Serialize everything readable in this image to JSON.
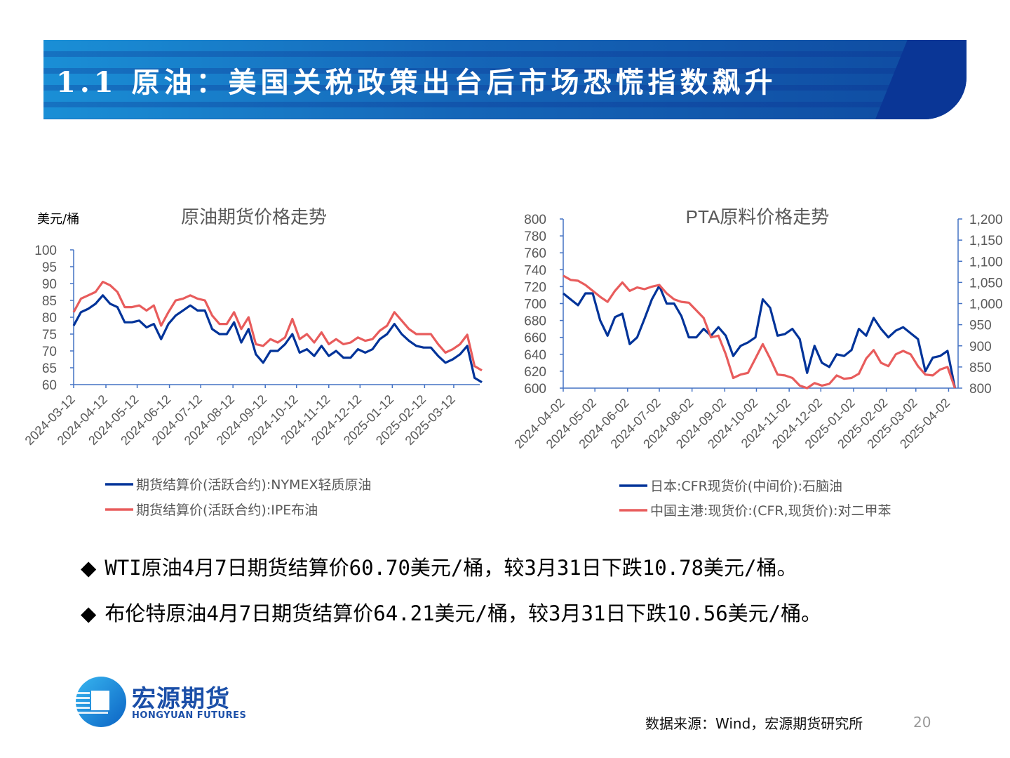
{
  "header": {
    "title": "1.1 原油：美国关税政策出台后市场恐慌指数飙升"
  },
  "colors": {
    "blue": "#003399",
    "red": "#e85c5c",
    "axis": "#4472c4",
    "text": "#595959"
  },
  "chart_data": [
    {
      "type": "line",
      "title": "原油期货价格走势",
      "ylabel": "美元/桶",
      "ylim": [
        60,
        100
      ],
      "yticks": [
        "60",
        "65",
        "70",
        "75",
        "80",
        "85",
        "90",
        "95",
        "100"
      ],
      "xticks": [
        "2024-03-12",
        "2024-04-12",
        "2024-05-12",
        "2024-06-12",
        "2024-07-12",
        "2024-08-12",
        "2024-09-12",
        "2024-10-12",
        "2024-11-12",
        "2024-12-12",
        "2025-01-12",
        "2025-02-12",
        "2025-03-12"
      ],
      "start": "2024-03-12",
      "step_days": 7,
      "legend_position": "bottom",
      "series": [
        {
          "name": "期货结算价(活跃合约):NYMEX轻质原油",
          "color": "#003399",
          "axis": "left",
          "values": [
            77.5,
            81.5,
            82.5,
            84,
            86.5,
            84,
            83,
            78.5,
            78.5,
            79,
            77,
            78,
            73.5,
            78,
            80.5,
            82,
            83.5,
            82,
            82,
            76.5,
            75,
            75,
            78.5,
            72.5,
            76.5,
            69,
            66.5,
            70,
            70,
            72,
            75,
            69.5,
            70.5,
            68.5,
            71.5,
            68.5,
            70,
            68,
            68,
            70.5,
            69.5,
            70.5,
            73.5,
            75,
            78,
            75,
            73,
            71.5,
            71,
            71,
            68.5,
            66.5,
            67.5,
            69,
            71.5,
            62,
            60.7
          ]
        },
        {
          "name": "期货结算价(活跃合约):IPE布油",
          "color": "#e85c5c",
          "axis": "left",
          "values": [
            81.5,
            85.5,
            86.5,
            87.5,
            90.5,
            89.5,
            87.5,
            83,
            83,
            83.5,
            82,
            83.5,
            77.5,
            81.5,
            85,
            85.5,
            86.5,
            85.5,
            85,
            80.5,
            78,
            78,
            81.5,
            76.5,
            80,
            72,
            71.5,
            73.5,
            72.5,
            74,
            79.5,
            73.5,
            75,
            72.5,
            75.5,
            72,
            73.5,
            72,
            72.5,
            74,
            73,
            73.5,
            76,
            77.5,
            81.5,
            79,
            76.5,
            75,
            75,
            75,
            72,
            69.5,
            70.5,
            72,
            74.8,
            65.5,
            64.2
          ]
        }
      ]
    },
    {
      "type": "line",
      "title": "PTA原料价格走势",
      "ylim": [
        600,
        800
      ],
      "y2lim": [
        800,
        1200
      ],
      "yticks": [
        "600",
        "620",
        "640",
        "660",
        "680",
        "700",
        "720",
        "740",
        "760",
        "780",
        "800"
      ],
      "y2ticks": [
        "800",
        "850",
        "900",
        "950",
        "1,000",
        "1,050",
        "1,100",
        "1,150",
        "1,200"
      ],
      "xticks": [
        "2024-04-02",
        "2024-05-02",
        "2024-06-02",
        "2024-07-02",
        "2024-08-02",
        "2024-09-02",
        "2024-10-02",
        "2024-11-02",
        "2024-12-02",
        "2025-01-02",
        "2025-02-02",
        "2025-03-02",
        "2025-04-02"
      ],
      "start": "2024-04-02",
      "step_days": 7,
      "legend_position": "bottom",
      "series": [
        {
          "name": "日本:CFR现货价(中间价):石脑油",
          "color": "#003399",
          "axis": "left",
          "values": [
            712,
            705,
            698,
            712,
            712,
            680,
            662,
            684,
            688,
            652,
            660,
            682,
            705,
            721,
            700,
            700,
            685,
            660,
            660,
            670,
            662,
            672,
            662,
            638,
            650,
            654,
            660,
            705,
            695,
            662,
            664,
            670,
            658,
            618,
            650,
            630,
            625,
            640,
            638,
            645,
            670,
            662,
            683,
            670,
            660,
            668,
            672,
            665,
            658,
            620,
            636,
            638,
            644,
            600
          ]
        },
        {
          "name": "中国主港:现货价:(CFR,现货价):对二甲苯",
          "color": "#e85c5c",
          "axis": "right",
          "values": [
            1066,
            1056,
            1054,
            1044,
            1030,
            1016,
            1004,
            1030,
            1050,
            1030,
            1038,
            1034,
            1040,
            1044,
            1024,
            1010,
            1004,
            1002,
            984,
            966,
            920,
            924,
            880,
            824,
            832,
            836,
            870,
            904,
            870,
            832,
            830,
            824,
            806,
            800,
            812,
            806,
            810,
            830,
            822,
            824,
            834,
            870,
            890,
            860,
            852,
            880,
            888,
            880,
            852,
            832,
            830,
            844,
            850,
            800
          ]
        }
      ]
    }
  ],
  "bullets": [
    "WTI原油4月7日期货结算价60.70美元/桶，较3月31日下跌10.78美元/桶。",
    "布伦特原油4月7日期货结算价64.21美元/桶，较3月31日下跌10.56美元/桶。"
  ],
  "bullet_marker": "◆",
  "logo": {
    "cn": "宏源期货",
    "en": "HONGYUAN FUTURES"
  },
  "footer": {
    "source": "数据来源：Wind，宏源期货研究所",
    "page": "20"
  }
}
